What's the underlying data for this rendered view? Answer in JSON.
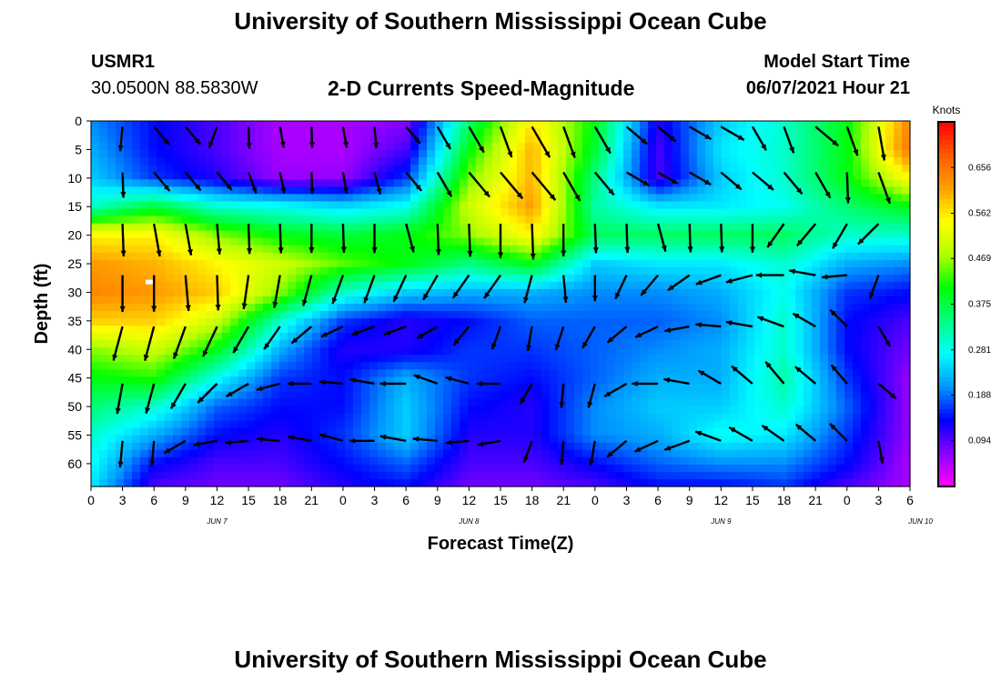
{
  "header": {
    "title": "University of Southern Mississippi Ocean Cube",
    "station_id": "USMR1",
    "station_location": "30.0500N  88.5830W",
    "subtitle": "2-D Currents Speed-Magnitude",
    "model_start_label": "Model Start Time",
    "model_start_value": "06/07/2021 Hour 21"
  },
  "footer": {
    "title": "University of Southern Mississippi Ocean Cube"
  },
  "chart_data": {
    "type": "heatmap",
    "title": "2-D Currents Speed-Magnitude",
    "xlabel": "Forecast Time(Z)",
    "ylabel": "Depth (ft)",
    "x_ticks": [
      "0",
      "3",
      "6",
      "9",
      "12",
      "15",
      "18",
      "21",
      "0",
      "3",
      "6",
      "9",
      "12",
      "15",
      "18",
      "21",
      "0",
      "3",
      "6",
      "9",
      "12",
      "15",
      "18",
      "21",
      "0",
      "3",
      "6"
    ],
    "date_labels": [
      {
        "label": "JUN 7",
        "hour": 12
      },
      {
        "label": "JUN 8",
        "hour": 36
      },
      {
        "label": "JUN 9",
        "hour": 60
      },
      {
        "label": "JUN 10",
        "hour": 79
      }
    ],
    "x_unit": "hours",
    "xlim": [
      0,
      78
    ],
    "y_ticks": [
      0,
      5,
      10,
      15,
      20,
      25,
      30,
      35,
      40,
      45,
      50,
      55,
      60
    ],
    "ylim": [
      0,
      64
    ],
    "y_inverted": true,
    "colorbar": {
      "label": "Knots",
      "ticks": [
        0.656,
        0.562,
        0.469,
        0.375,
        0.281,
        0.188,
        0.094
      ],
      "range": [
        0.0,
        0.75
      ],
      "colors": [
        "#ff00ff",
        "#8a00ff",
        "#0000ff",
        "#0096ff",
        "#00ffff",
        "#00ff80",
        "#00ff00",
        "#b4ff00",
        "#ffff00",
        "#ffa000",
        "#ff5a00",
        "#ff0000"
      ]
    },
    "speed_grid": {
      "times": [
        0,
        6,
        12,
        18,
        24,
        30,
        36,
        42,
        48,
        54,
        60,
        66,
        72,
        78
      ],
      "depths": [
        0,
        5,
        10,
        15,
        20,
        25,
        30,
        35,
        40,
        45,
        50,
        55,
        60,
        64
      ],
      "values": [
        [
          0.2,
          0.14,
          0.1,
          0.05,
          0.05,
          0.07,
          0.35,
          0.56,
          0.4,
          0.12,
          0.24,
          0.3,
          0.4,
          0.64
        ],
        [
          0.22,
          0.14,
          0.1,
          0.05,
          0.05,
          0.1,
          0.4,
          0.6,
          0.38,
          0.1,
          0.26,
          0.3,
          0.4,
          0.66
        ],
        [
          0.24,
          0.16,
          0.12,
          0.06,
          0.06,
          0.16,
          0.45,
          0.6,
          0.34,
          0.1,
          0.24,
          0.3,
          0.4,
          0.55
        ],
        [
          0.3,
          0.38,
          0.3,
          0.28,
          0.25,
          0.28,
          0.5,
          0.62,
          0.32,
          0.26,
          0.26,
          0.28,
          0.35,
          0.4
        ],
        [
          0.55,
          0.55,
          0.46,
          0.4,
          0.38,
          0.4,
          0.46,
          0.55,
          0.36,
          0.36,
          0.36,
          0.36,
          0.3,
          0.3
        ],
        [
          0.62,
          0.6,
          0.55,
          0.5,
          0.44,
          0.4,
          0.34,
          0.4,
          0.24,
          0.26,
          0.26,
          0.3,
          0.22,
          0.2
        ],
        [
          0.64,
          0.62,
          0.58,
          0.46,
          0.3,
          0.24,
          0.22,
          0.22,
          0.2,
          0.2,
          0.22,
          0.28,
          0.16,
          0.14
        ],
        [
          0.58,
          0.58,
          0.5,
          0.3,
          0.16,
          0.12,
          0.14,
          0.18,
          0.18,
          0.18,
          0.2,
          0.3,
          0.14,
          0.1
        ],
        [
          0.46,
          0.5,
          0.4,
          0.22,
          0.12,
          0.12,
          0.16,
          0.16,
          0.18,
          0.2,
          0.22,
          0.3,
          0.14,
          0.08
        ],
        [
          0.4,
          0.42,
          0.28,
          0.16,
          0.14,
          0.22,
          0.16,
          0.14,
          0.18,
          0.22,
          0.22,
          0.32,
          0.16,
          0.06
        ],
        [
          0.35,
          0.3,
          0.18,
          0.14,
          0.14,
          0.24,
          0.14,
          0.12,
          0.2,
          0.24,
          0.24,
          0.3,
          0.18,
          0.06
        ],
        [
          0.3,
          0.22,
          0.14,
          0.12,
          0.16,
          0.24,
          0.12,
          0.12,
          0.2,
          0.22,
          0.28,
          0.26,
          0.16,
          0.06
        ],
        [
          0.28,
          0.14,
          0.1,
          0.1,
          0.14,
          0.18,
          0.1,
          0.1,
          0.14,
          0.18,
          0.2,
          0.2,
          0.14,
          0.05
        ],
        [
          0.26,
          0.1,
          0.08,
          0.08,
          0.12,
          0.14,
          0.08,
          0.08,
          0.1,
          0.14,
          0.14,
          0.16,
          0.1,
          0.05
        ]
      ]
    },
    "vectors": {
      "times": [
        3,
        6,
        9,
        12,
        15,
        18,
        21,
        24,
        27,
        30,
        33,
        36,
        39,
        42,
        45,
        48,
        51,
        54,
        57,
        60,
        63,
        66,
        69,
        72,
        75
      ],
      "depths": [
        1,
        9,
        18,
        27,
        36,
        46,
        56
      ],
      "angles_deg": [
        [
          185,
          140,
          140,
          200,
          178,
          170,
          178,
          170,
          175,
          140,
          150,
          150,
          160,
          150,
          160,
          150,
          130,
          130,
          120,
          120,
          150,
          160,
          130,
          160,
          170
        ],
        [
          178,
          140,
          140,
          140,
          160,
          168,
          178,
          170,
          165,
          140,
          150,
          140,
          140,
          140,
          150,
          140,
          120,
          120,
          120,
          130,
          130,
          140,
          150,
          178,
          160
        ],
        [
          178,
          170,
          170,
          175,
          178,
          178,
          180,
          178,
          180,
          165,
          178,
          178,
          180,
          178,
          180,
          178,
          178,
          165,
          178,
          178,
          180,
          215,
          220,
          210,
          225
        ],
        [
          180,
          180,
          175,
          178,
          188,
          190,
          195,
          200,
          200,
          205,
          210,
          215,
          215,
          195,
          175,
          180,
          205,
          220,
          235,
          250,
          255,
          270,
          280,
          265,
          200
        ],
        [
          195,
          195,
          200,
          205,
          210,
          215,
          230,
          245,
          250,
          250,
          240,
          220,
          200,
          190,
          198,
          210,
          230,
          245,
          260,
          275,
          280,
          290,
          300,
          315,
          150
        ],
        [
          190,
          195,
          210,
          225,
          240,
          255,
          270,
          275,
          280,
          270,
          290,
          285,
          270,
          210,
          185,
          195,
          240,
          270,
          280,
          300,
          310,
          320,
          310,
          320,
          130
        ],
        [
          185,
          185,
          240,
          260,
          265,
          275,
          280,
          285,
          270,
          280,
          275,
          265,
          260,
          200,
          185,
          190,
          230,
          245,
          250,
          290,
          300,
          305,
          310,
          315,
          170
        ]
      ],
      "speed_scale": 0.36
    }
  }
}
